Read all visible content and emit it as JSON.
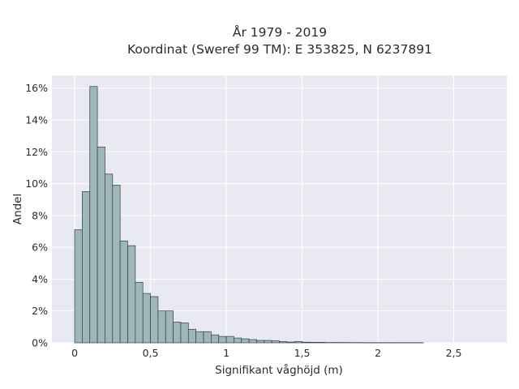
{
  "chart_data": {
    "type": "bar",
    "title": "År 1979 - 2019",
    "subtitle": "Koordinat (Sweref 99 TM): E 353825, N 6237891",
    "xlabel": "Signifikant våghöjd (m)",
    "ylabel": "Andel",
    "bin_width": 0.05,
    "bin_start": 0.0,
    "values": [
      7.1,
      9.5,
      16.1,
      12.3,
      10.6,
      9.9,
      6.4,
      6.1,
      3.8,
      3.1,
      2.9,
      2.0,
      2.0,
      1.3,
      1.25,
      0.85,
      0.7,
      0.7,
      0.5,
      0.4,
      0.4,
      0.3,
      0.25,
      0.2,
      0.15,
      0.15,
      0.12,
      0.08,
      0.05,
      0.08,
      0.04,
      0.03,
      0.03,
      0.02,
      0.02,
      0.02,
      0.015,
      0.015,
      0.01,
      0.01,
      0.01,
      0.01,
      0.01,
      0.01,
      0.01,
      0.01
    ],
    "xlim": [
      -0.15,
      2.85
    ],
    "ylim": [
      0,
      16.8
    ],
    "x_ticks": [
      0,
      0.5,
      1,
      1.5,
      2,
      2.5
    ],
    "x_tick_labels": [
      "0",
      "0,5",
      "1",
      "1,5",
      "2",
      "2,5"
    ],
    "y_ticks": [
      0,
      2,
      4,
      6,
      8,
      10,
      12,
      14,
      16
    ],
    "y_tick_labels": [
      "0%",
      "2%",
      "4%",
      "6%",
      "8%",
      "10%",
      "12%",
      "14%",
      "16%"
    ],
    "grid": true,
    "colors": {
      "bar_fill": "#9fb7b7",
      "bar_edge": "#2f3f3f",
      "plot_bg": "#e9e9f1",
      "grid": "#ffffff"
    }
  }
}
